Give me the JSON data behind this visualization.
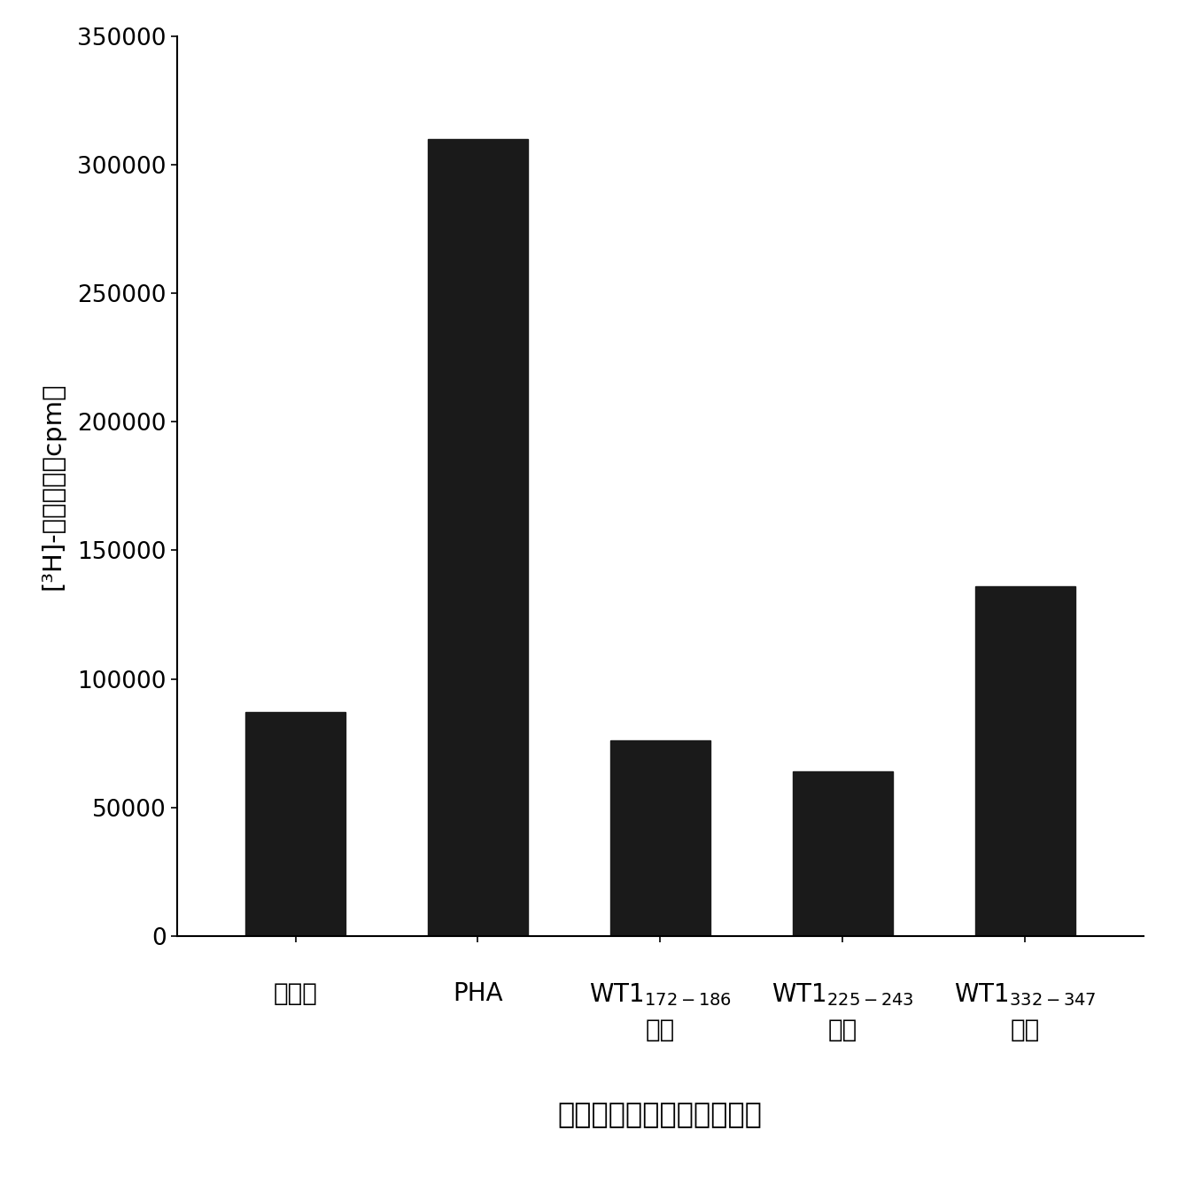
{
  "values": [
    87000,
    310000,
    76000,
    64000,
    136000
  ],
  "bar_color": "#1a1a1a",
  "bar_width": 0.55,
  "ylabel": "[³H]-胸苷摄入（cpm）",
  "xlabel": "用于刺激的树突细胞的处理",
  "ylim": [
    0,
    350000
  ],
  "yticks": [
    0,
    50000,
    100000,
    150000,
    200000,
    250000,
    300000,
    350000
  ],
  "background_color": "#ffffff",
  "ylabel_fontsize": 21,
  "xlabel_fontsize": 23,
  "tick_fontsize": 19,
  "xtick_fontsize": 20,
  "label_configs": [
    {
      "main": "未处理",
      "sub": "",
      "second_line": ""
    },
    {
      "main": "PHA",
      "sub": "",
      "second_line": ""
    },
    {
      "main": "WT1",
      "sub": "172-186",
      "second_line": "刺激"
    },
    {
      "main": "WT1",
      "sub": "225-243",
      "second_line": "刺激"
    },
    {
      "main": "WT1",
      "sub": "332-347",
      "second_line": "刺激"
    }
  ]
}
